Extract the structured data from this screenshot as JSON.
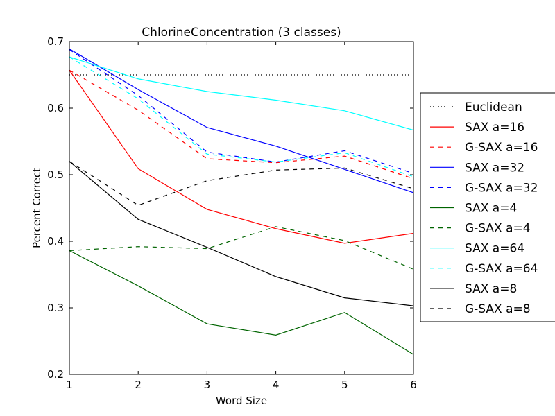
{
  "chart_data": {
    "type": "line",
    "title": "ChlorineConcentration (3 classes)",
    "xlabel": "Word Size",
    "ylabel": "Percent Correct",
    "xlim": [
      1,
      6
    ],
    "ylim": [
      0.2,
      0.7
    ],
    "x": [
      1,
      2,
      3,
      4,
      5,
      6
    ],
    "xticks": [
      "1",
      "2",
      "3",
      "4",
      "5",
      "6"
    ],
    "yticks": [
      "0.2",
      "0.3",
      "0.4",
      "0.5",
      "0.6",
      "0.7"
    ],
    "grid": false,
    "legend_position": "outside-right",
    "series": [
      {
        "name": "Euclidean",
        "color": "#000000",
        "style": "dotted",
        "values": [
          0.65,
          0.65,
          0.65,
          0.65,
          0.65,
          0.65
        ]
      },
      {
        "name": "SAX a=16",
        "color": "#ff0000",
        "style": "solid",
        "values": [
          0.657,
          0.509,
          0.448,
          0.419,
          0.397,
          0.412
        ]
      },
      {
        "name": "G-SAX a=16",
        "color": "#ff0000",
        "style": "dashed",
        "values": [
          0.657,
          0.597,
          0.524,
          0.518,
          0.528,
          0.494
        ]
      },
      {
        "name": "SAX a=32",
        "color": "#0000ff",
        "style": "solid",
        "values": [
          0.689,
          0.628,
          0.571,
          0.543,
          0.508,
          0.473
        ]
      },
      {
        "name": "G-SAX a=32",
        "color": "#0000ff",
        "style": "dashed",
        "values": [
          0.688,
          0.619,
          0.534,
          0.519,
          0.536,
          0.502
        ]
      },
      {
        "name": "SAX a=4",
        "color": "#006400",
        "style": "solid",
        "values": [
          0.386,
          0.333,
          0.276,
          0.259,
          0.293,
          0.23
        ]
      },
      {
        "name": "G-SAX a=4",
        "color": "#006400",
        "style": "dashed",
        "values": [
          0.386,
          0.392,
          0.389,
          0.422,
          0.401,
          0.358
        ]
      },
      {
        "name": "SAX a=64",
        "color": "#00ffff",
        "style": "solid",
        "values": [
          0.677,
          0.644,
          0.625,
          0.612,
          0.596,
          0.567
        ]
      },
      {
        "name": "G-SAX a=64",
        "color": "#00ffff",
        "style": "dashed",
        "values": [
          0.677,
          0.614,
          0.531,
          0.519,
          0.533,
          0.497
        ]
      },
      {
        "name": "SAX a=8",
        "color": "#000000",
        "style": "solid",
        "values": [
          0.52,
          0.433,
          0.391,
          0.347,
          0.315,
          0.303
        ]
      },
      {
        "name": "G-SAX a=8",
        "color": "#000000",
        "style": "dashed",
        "values": [
          0.52,
          0.454,
          0.491,
          0.507,
          0.51,
          0.479
        ]
      }
    ]
  }
}
